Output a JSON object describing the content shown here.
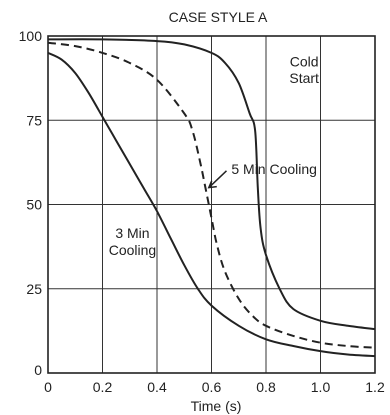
{
  "chart_data": {
    "type": "line",
    "title": "CASE STYLE A",
    "xlabel": "Time (s)",
    "ylabel": "",
    "xlim": [
      0,
      1.2
    ],
    "ylim": [
      0,
      100
    ],
    "grid": true,
    "x_ticks": [
      "0",
      "0.2",
      "0.4",
      "0.6",
      "0.8",
      "1.0",
      "1.2"
    ],
    "y_ticks": [
      "0",
      "25",
      "50",
      "75",
      "100"
    ],
    "series": [
      {
        "name": "Cold Start",
        "style": "solid",
        "x": [
          0,
          0.2,
          0.4,
          0.5,
          0.6,
          0.65,
          0.7,
          0.74,
          0.76,
          0.77,
          0.78,
          0.8,
          0.85,
          0.9,
          1.0,
          1.1,
          1.2
        ],
        "y": [
          99,
          99,
          98.5,
          97.5,
          95,
          92,
          86,
          77,
          72,
          55,
          43,
          35,
          25,
          19,
          15.5,
          14,
          13
        ]
      },
      {
        "name": "5 Min Cooling",
        "style": "dashed",
        "x": [
          0,
          0.1,
          0.2,
          0.3,
          0.4,
          0.5,
          0.53,
          0.56,
          0.58,
          0.6,
          0.62,
          0.65,
          0.7,
          0.75,
          0.8,
          0.9,
          1.0,
          1.1,
          1.2
        ],
        "y": [
          98,
          97,
          95,
          92,
          87,
          77,
          72,
          62,
          54,
          46,
          38,
          30,
          22,
          17,
          14,
          11,
          9,
          8,
          7.5
        ]
      },
      {
        "name": "3 Min Cooling",
        "style": "solid",
        "x": [
          0,
          0.05,
          0.1,
          0.15,
          0.2,
          0.25,
          0.3,
          0.35,
          0.4,
          0.45,
          0.5,
          0.55,
          0.6,
          0.7,
          0.8,
          0.9,
          1.0,
          1.1,
          1.2
        ],
        "y": [
          95,
          93,
          89,
          83,
          76,
          69,
          62,
          55,
          48,
          40,
          32,
          25,
          20,
          14,
          10,
          8,
          6.5,
          5.5,
          5
        ]
      }
    ],
    "annotations": [
      {
        "text": "Cold",
        "x": 0.94,
        "y": 91
      },
      {
        "text": "Start",
        "x": 0.94,
        "y": 86
      },
      {
        "text": "5 Min Cooling",
        "x": 0.83,
        "y": 59
      },
      {
        "text": "3 Min",
        "x": 0.31,
        "y": 40
      },
      {
        "text": "Cooling",
        "x": 0.31,
        "y": 35
      }
    ]
  }
}
